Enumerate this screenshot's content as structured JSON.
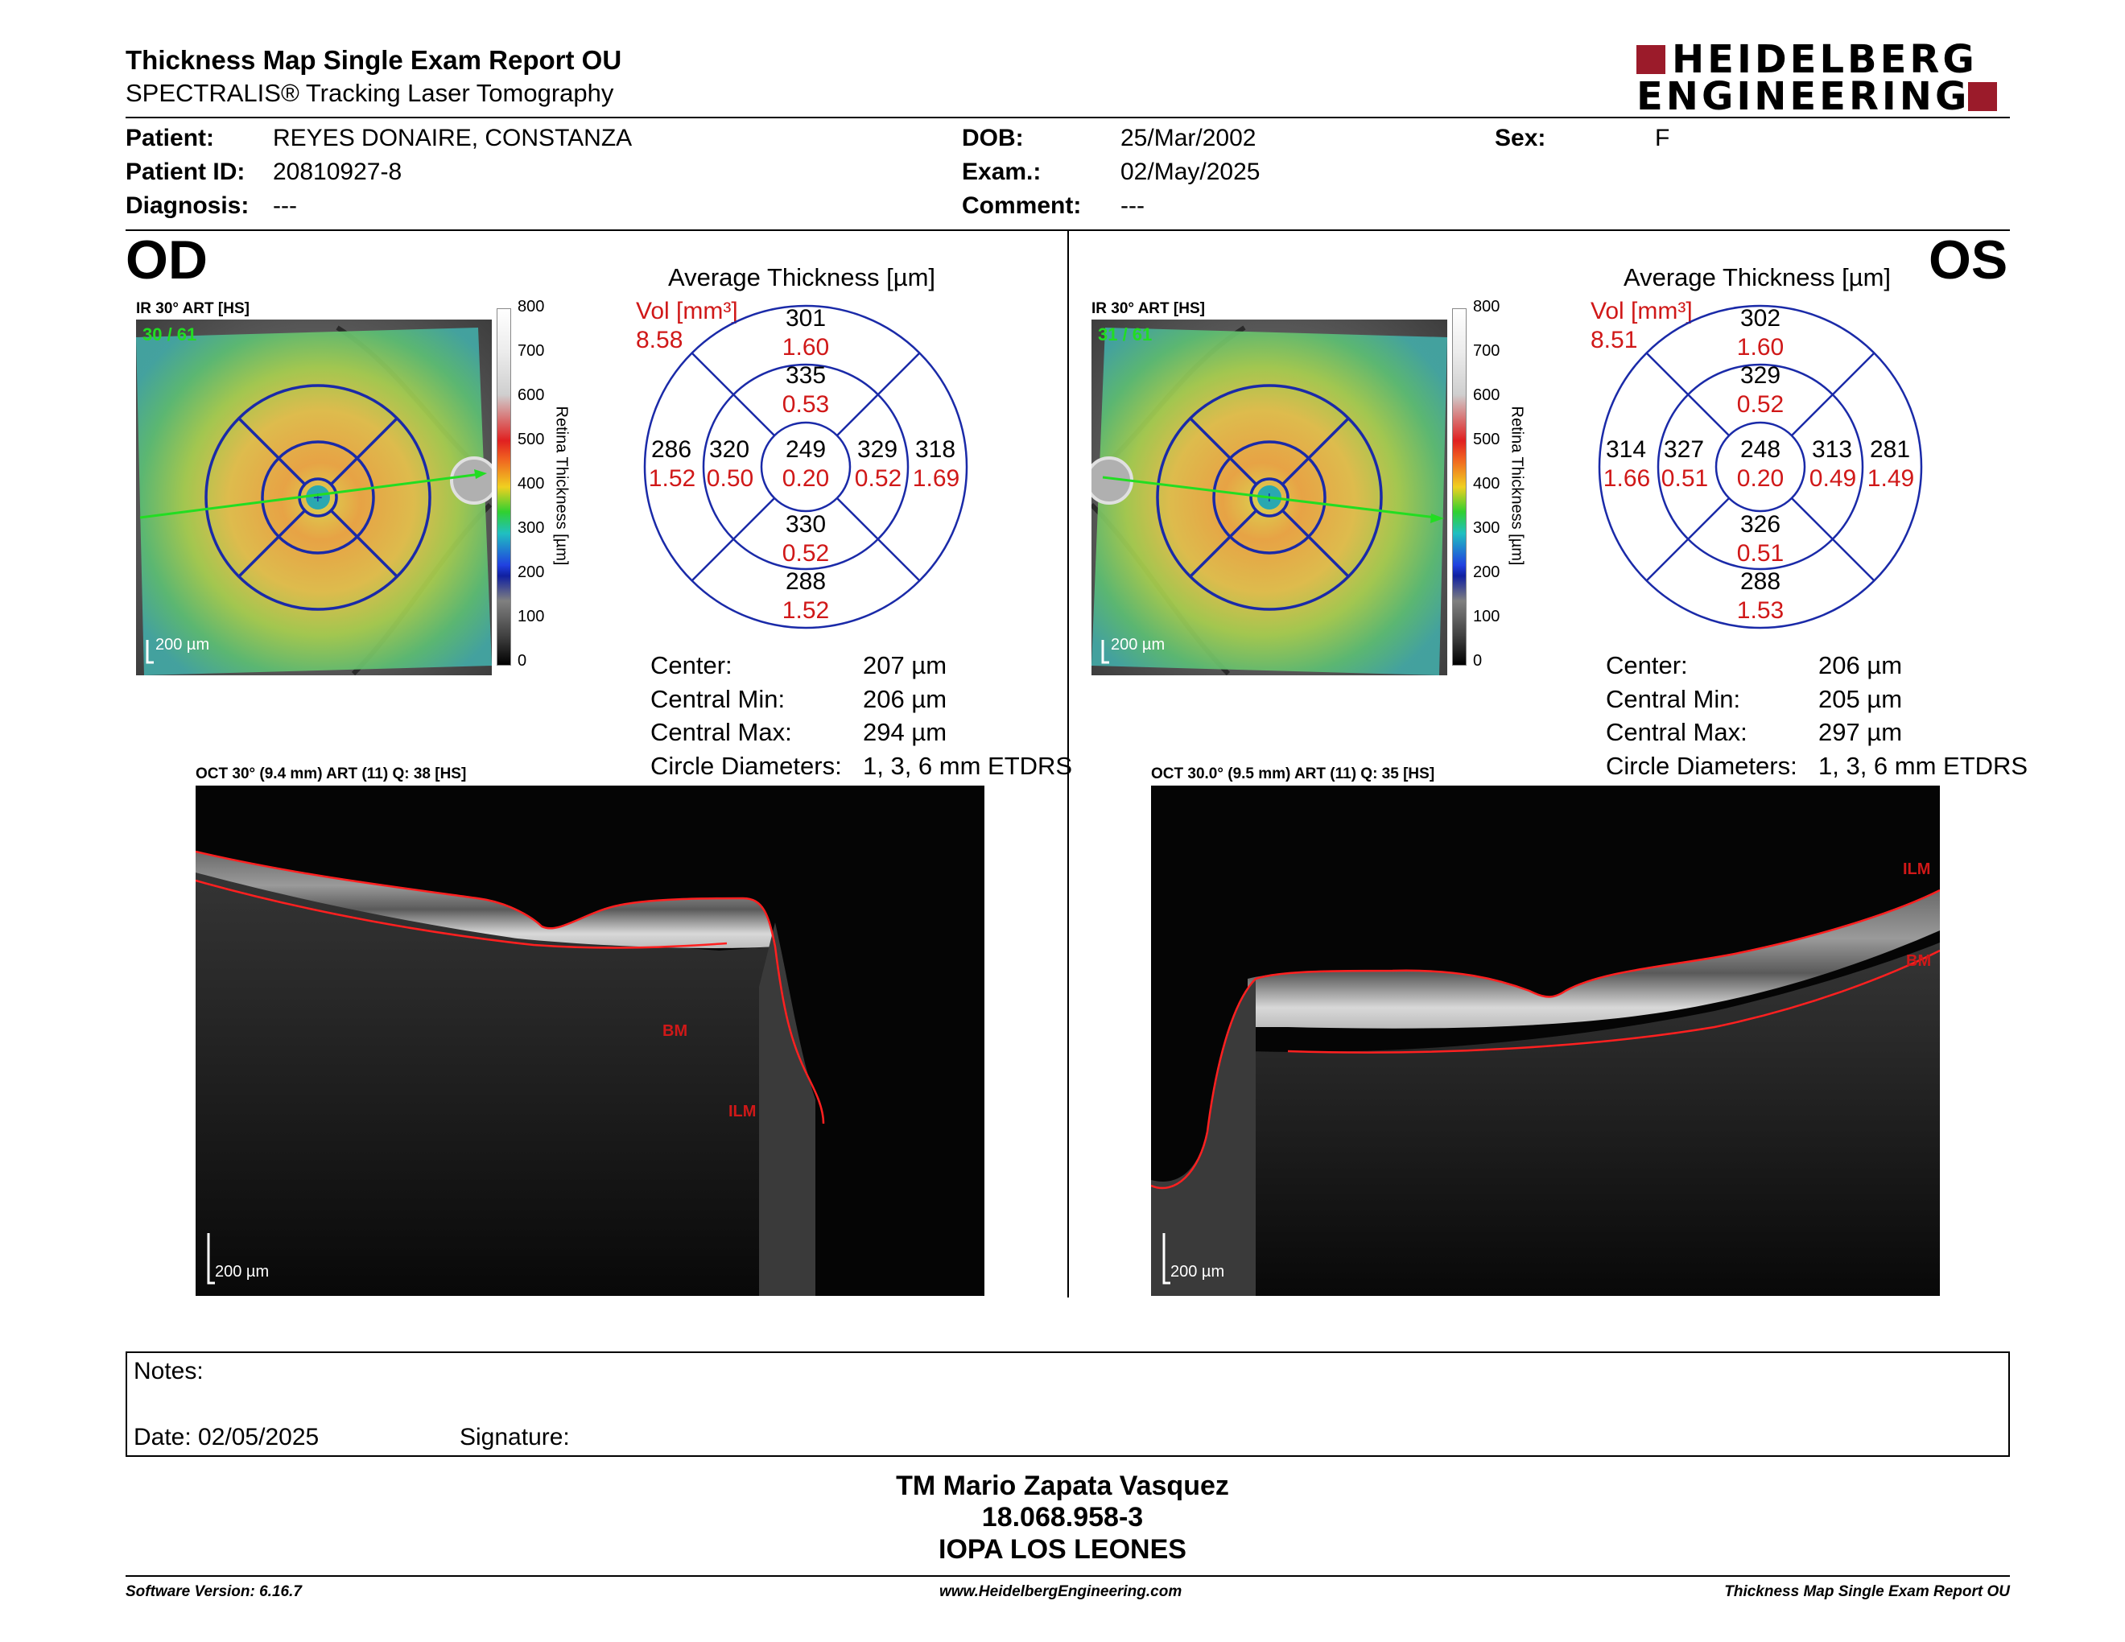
{
  "header": {
    "title": "Thickness Map Single Exam Report OU",
    "subtitle": "SPECTRALIS® Tracking Laser Tomography",
    "logo_line1": "HEIDELBERG",
    "logo_line2": "ENGINEERING"
  },
  "patient": {
    "patient_label": "Patient:",
    "patient_value": "REYES DONAIRE, CONSTANZA",
    "id_label": "Patient ID:",
    "id_value": "20810927-8",
    "diagnosis_label": "Diagnosis:",
    "diagnosis_value": "---",
    "dob_label": "DOB:",
    "dob_value": "25/Mar/2002",
    "exam_label": "Exam.:",
    "exam_value": "02/May/2025",
    "comment_label": "Comment:",
    "comment_value": "---",
    "sex_label": "Sex:",
    "sex_value": "F"
  },
  "colorbar": {
    "ticks": [
      "800",
      "700",
      "600",
      "500",
      "400",
      "300",
      "200",
      "100",
      "0"
    ],
    "label": "Retina Thickness [µm]"
  },
  "od": {
    "eye": "OD",
    "ir_label": "IR 30° ART [HS]",
    "ir_count": "30 / 61",
    "scale": "200 µm",
    "avg_title": "Average Thickness [µm]",
    "vol_label": "Vol [mm³]",
    "vol_value": "8.58",
    "etdrs": {
      "center": {
        "t": "249",
        "v": "0.20"
      },
      "inner_sup": {
        "t": "335",
        "v": "0.53"
      },
      "inner_inf": {
        "t": "330",
        "v": "0.52"
      },
      "inner_left": {
        "t": "320",
        "v": "0.50"
      },
      "inner_right": {
        "t": "329",
        "v": "0.52"
      },
      "outer_sup": {
        "t": "301",
        "v": "1.60"
      },
      "outer_inf": {
        "t": "288",
        "v": "1.52"
      },
      "outer_left": {
        "t": "286",
        "v": "1.52"
      },
      "outer_right": {
        "t": "318",
        "v": "1.69"
      }
    },
    "stats": {
      "center_label": "Center:",
      "center_value": "207 µm",
      "min_label": "Central Min:",
      "min_value": "206 µm",
      "max_label": "Central Max:",
      "max_value": "294 µm",
      "diam_label": "Circle Diameters:",
      "diam_value": "1, 3, 6 mm ETDRS"
    },
    "oct_label": "OCT 30° (9.4 mm) ART (11) Q: 38 [HS]",
    "oct_scale": "200 µm",
    "layer_bm": "BM",
    "layer_ilm": "ILM"
  },
  "os": {
    "eye": "OS",
    "ir_label": "IR 30° ART [HS]",
    "ir_count": "31 / 61",
    "scale": "200 µm",
    "avg_title": "Average Thickness [µm]",
    "vol_label": "Vol [mm³]",
    "vol_value": "8.51",
    "etdrs": {
      "center": {
        "t": "248",
        "v": "0.20"
      },
      "inner_sup": {
        "t": "329",
        "v": "0.52"
      },
      "inner_inf": {
        "t": "326",
        "v": "0.51"
      },
      "inner_left": {
        "t": "327",
        "v": "0.51"
      },
      "inner_right": {
        "t": "313",
        "v": "0.49"
      },
      "outer_sup": {
        "t": "302",
        "v": "1.60"
      },
      "outer_inf": {
        "t": "288",
        "v": "1.53"
      },
      "outer_left": {
        "t": "314",
        "v": "1.66"
      },
      "outer_right": {
        "t": "281",
        "v": "1.49"
      }
    },
    "stats": {
      "center_label": "Center:",
      "center_value": "206 µm",
      "min_label": "Central Min:",
      "min_value": "205 µm",
      "max_label": "Central Max:",
      "max_value": "297 µm",
      "diam_label": "Circle Diameters:",
      "diam_value": "1, 3, 6 mm ETDRS"
    },
    "oct_label": "OCT 30.0° (9.5 mm) ART (11) Q: 35 [HS]",
    "oct_scale": "200 µm",
    "layer_bm": "BM",
    "layer_ilm": "ILM"
  },
  "notes": {
    "notes_label": "Notes:",
    "date_label": "Date: 02/05/2025",
    "signature_label": "Signature:"
  },
  "signature": {
    "name": "TM Mario Zapata Vasquez",
    "rut": "18.068.958-3",
    "org": "IOPA LOS LEONES"
  },
  "footer": {
    "version": "Software Version: 6.16.7",
    "url": "www.HeidelbergEngineering.com",
    "report": "Thickness Map Single Exam Report OU"
  },
  "colors": {
    "etdrs_blue": "#1a2aa8",
    "red_text": "#d01818",
    "logo_red": "#9b1b2a",
    "scan_line": "#22dd22"
  }
}
